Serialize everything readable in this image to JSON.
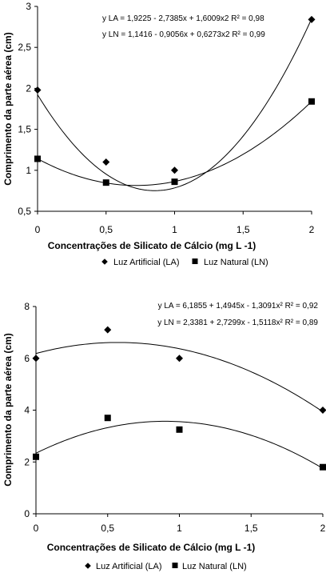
{
  "chart_data": [
    {
      "type": "scatter",
      "xlabel": "Concentrações de Silicato de Cálcio (mg L -1)",
      "ylabel": "Comprimento da parte aérea (cm)",
      "xlim": [
        0,
        2
      ],
      "ylim": [
        0.5,
        3
      ],
      "xticks": [
        "0",
        "0,5",
        "1",
        "1,5",
        "2"
      ],
      "yticks": [
        "0,5",
        "1",
        "1,5",
        "2",
        "2,5",
        "3"
      ],
      "grid": false,
      "legend_position": "bottom",
      "equations": [
        "y LA = 1,9225 - 2,7385x + 1,6009x2 R² = 0,98",
        "y LN = 1,1416 - 0,9056x + 0,6273x2 R² = 0,99"
      ],
      "series": [
        {
          "name": "Luz Artificial (LA)",
          "marker": "diamond",
          "x": [
            0,
            0.5,
            1,
            2
          ],
          "y": [
            1.98,
            1.1,
            1.0,
            2.84
          ],
          "fit": [
            1.9225,
            -2.7385,
            1.6009
          ]
        },
        {
          "name": "Luz Natural (LN)",
          "marker": "square",
          "x": [
            0,
            0.5,
            1,
            2
          ],
          "y": [
            1.14,
            0.85,
            0.86,
            1.84
          ],
          "fit": [
            1.1416,
            -0.9056,
            0.6273
          ]
        }
      ]
    },
    {
      "type": "scatter",
      "xlabel": "Concentrações de Silicato de Cálcio (mg L -1)",
      "ylabel": "Comprimento da parte aérea (cm)",
      "xlim": [
        0,
        2
      ],
      "ylim": [
        0,
        8
      ],
      "xticks": [
        "0",
        "0,5",
        "1",
        "1,5",
        "2"
      ],
      "yticks": [
        "0",
        "2",
        "4",
        "6",
        "8"
      ],
      "grid": false,
      "legend_position": "bottom",
      "equations": [
        "y LA = 6,1855 + 1,4945x - 1,3091x² R² = 0,92",
        "y LN = 2,3381 + 2,7299x - 1,5118x² R² = 0,89"
      ],
      "series": [
        {
          "name": "Luz Artificial (LA)",
          "marker": "diamond",
          "x": [
            0,
            0.5,
            1,
            2
          ],
          "y": [
            6.0,
            7.1,
            6.0,
            4.0
          ],
          "fit": [
            6.1855,
            1.4945,
            -1.3091
          ]
        },
        {
          "name": "Luz Natural (LN)",
          "marker": "square",
          "x": [
            0,
            0.5,
            1,
            2
          ],
          "y": [
            2.2,
            3.7,
            3.25,
            1.8
          ],
          "fit": [
            2.3381,
            2.7299,
            -1.5118
          ]
        }
      ]
    }
  ]
}
